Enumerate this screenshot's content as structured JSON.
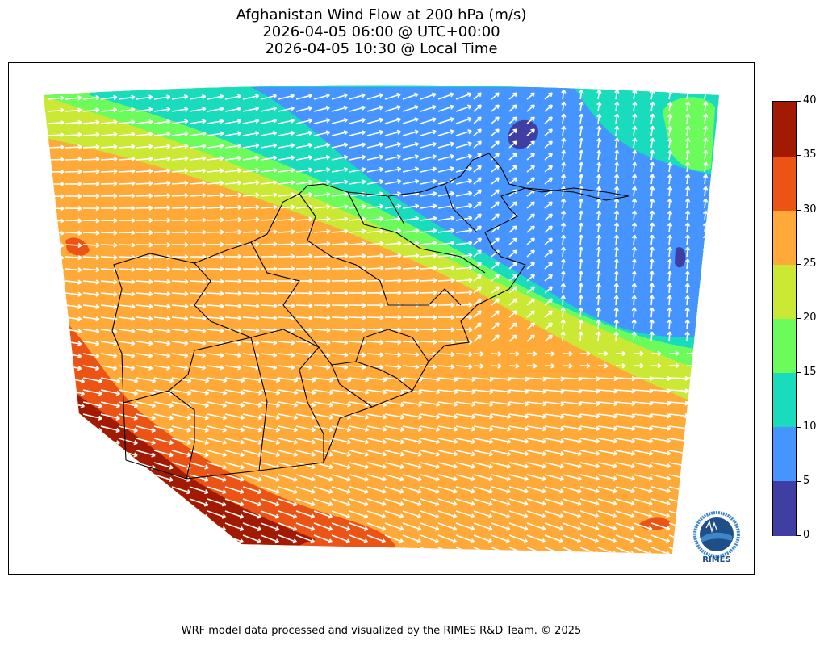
{
  "title": {
    "line1": "Afghanistan Wind Flow at 200 hPa (m/s)",
    "line2": "2026-04-05 06:00 @ UTC+00:00",
    "line3": "2026-04-05 10:30 @ Local Time"
  },
  "colorbar": {
    "levels": [
      {
        "from": 0,
        "to": 5,
        "color": "#3f3fa3"
      },
      {
        "from": 5,
        "to": 10,
        "color": "#4594ff"
      },
      {
        "from": 10,
        "to": 15,
        "color": "#19dcbc"
      },
      {
        "from": 15,
        "to": 20,
        "color": "#6bfb5b"
      },
      {
        "from": 20,
        "to": 25,
        "color": "#cbe834"
      },
      {
        "from": 25,
        "to": 30,
        "color": "#ffaa38"
      },
      {
        "from": 30,
        "to": 35,
        "color": "#ec5415"
      },
      {
        "from": 35,
        "to": 40,
        "color": "#a31a02"
      }
    ],
    "tick_labels": [
      "0",
      "5",
      "10",
      "15",
      "20",
      "25",
      "30",
      "35",
      "40"
    ]
  },
  "logo": {
    "text": "RIMES",
    "ring_text": "Regional Integrated Multi-Hazard Early Warning System",
    "colors": {
      "dark": "#1e4f86",
      "light": "#3f86c8"
    }
  },
  "footer": "WRF model data processed and visualized by the RIMES R&D Team. © 2025",
  "map": {
    "vector_color": "#ffffff",
    "boundary_color": "#000000"
  }
}
